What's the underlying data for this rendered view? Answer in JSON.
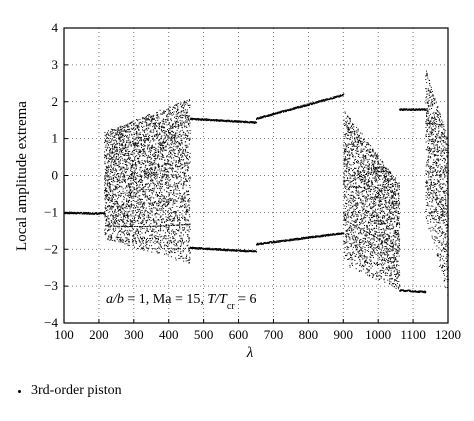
{
  "chart_data": {
    "type": "scatter",
    "subtype": "bifurcation-diagram",
    "xlabel": "λ",
    "ylabel": "Local amplitude extrema",
    "xlim": [
      100,
      1200
    ],
    "ylim": [
      -4,
      4
    ],
    "xticks": [
      100,
      200,
      300,
      400,
      500,
      600,
      700,
      800,
      900,
      1000,
      1100,
      1200
    ],
    "yticks": [
      -4,
      -3,
      -2,
      -1,
      0,
      1,
      2,
      3,
      4
    ],
    "grid": true,
    "grid_style": "dotted",
    "annotation": {
      "ab_label": "a/b",
      "ab_value": "1",
      "ma_label": "Ma",
      "ma_value": "15",
      "t_label": "T/T",
      "t_sub": "cr",
      "t_value": "6"
    },
    "legend": {
      "position": "bottom-left",
      "entries": [
        {
          "name": "3rd-order piston",
          "marker": "dot"
        }
      ]
    },
    "regions": [
      {
        "kind": "period-one",
        "x": [
          100,
          215
        ],
        "upper": null,
        "lower": [
          -1.0,
          -1.02
        ]
      },
      {
        "kind": "chaotic-band",
        "x": [
          215,
          460
        ],
        "upper": [
          1.2,
          2.1
        ],
        "lower": [
          -1.7,
          -2.4
        ]
      },
      {
        "kind": "periodic",
        "x": [
          460,
          650
        ],
        "upper": [
          1.55,
          1.45
        ],
        "lower": [
          -1.95,
          -2.05
        ]
      },
      {
        "kind": "periodic",
        "x": [
          650,
          900
        ],
        "upper": [
          1.55,
          2.2
        ],
        "lower": [
          -1.85,
          -1.55
        ]
      },
      {
        "kind": "chaotic-band",
        "x": [
          900,
          1060
        ],
        "upper": [
          1.8,
          -0.2
        ],
        "lower": [
          -2.4,
          -3.1
        ]
      },
      {
        "kind": "periodic",
        "x": [
          1060,
          1135
        ],
        "upper": [
          1.8,
          1.8
        ],
        "lower": [
          -3.1,
          -3.15
        ]
      },
      {
        "kind": "chaotic-band",
        "x": [
          1135,
          1200
        ],
        "upper": [
          2.9,
          1.0
        ],
        "lower": [
          -1.2,
          -3.3
        ]
      }
    ]
  }
}
